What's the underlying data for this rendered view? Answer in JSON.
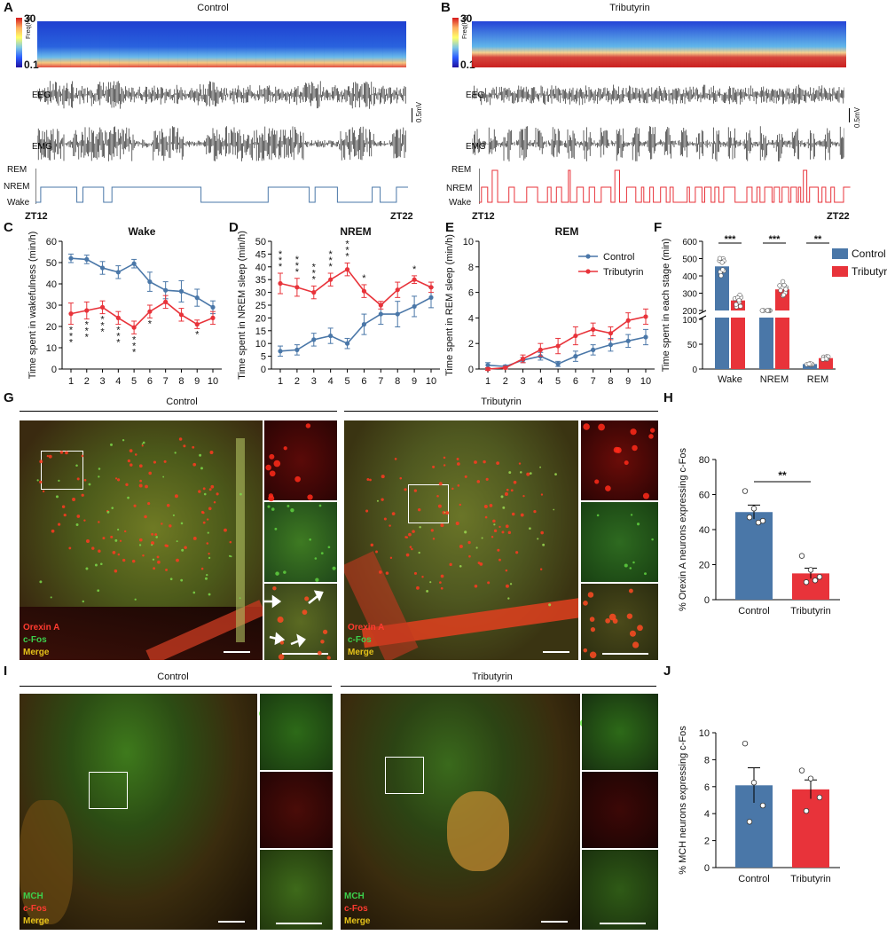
{
  "panels": {
    "A": "A",
    "B": "B",
    "C": "C",
    "D": "D",
    "E": "E",
    "F": "F",
    "G": "G",
    "H": "H",
    "I": "I",
    "J": "J"
  },
  "top": {
    "control_title": "Control",
    "tributyrin_title": "Tributyrin",
    "cbar_max": "30",
    "cbar_min": "0.1",
    "cbar_unit": "Freq(Hz)",
    "eeg": "EEG",
    "emg": "EMG",
    "rem": "REM",
    "nrem": "NREM",
    "wake": "Wake",
    "zt_start": "ZT12",
    "zt_end": "ZT22",
    "scale": "0.5mV"
  },
  "colors": {
    "control": "#4a77a8",
    "tributyrin": "#e8333a"
  },
  "chart_data": [
    {
      "id": "C",
      "type": "line",
      "title": "Wake",
      "ylabel": "Time spent in wakefulness (min/h)",
      "ylim": [
        0,
        60
      ],
      "yticks": [
        "0",
        "10",
        "20",
        "30",
        "40",
        "50",
        "60"
      ],
      "x": [
        1,
        2,
        3,
        4,
        5,
        6,
        7,
        8,
        9,
        10
      ],
      "series": [
        {
          "name": "Control",
          "values": [
            52,
            51.5,
            47.5,
            45.5,
            49.5,
            41,
            37,
            36.5,
            33.5,
            29
          ],
          "err": [
            2,
            2,
            3,
            3,
            2,
            4.5,
            4,
            5,
            4,
            3
          ]
        },
        {
          "name": "Tributyrin",
          "values": [
            26,
            27.5,
            29,
            24,
            19.5,
            27,
            31.5,
            25.5,
            21,
            24
          ],
          "err": [
            5,
            4,
            3,
            3,
            3,
            3,
            3,
            3,
            2,
            3
          ]
        }
      ],
      "sig": [
        {
          "x": 1,
          "t": "***"
        },
        {
          "x": 2,
          "t": "***"
        },
        {
          "x": 3,
          "t": "***"
        },
        {
          "x": 4,
          "t": "***"
        },
        {
          "x": 5,
          "t": "***"
        },
        {
          "x": 6,
          "t": "*"
        },
        {
          "x": 9,
          "t": "*"
        }
      ]
    },
    {
      "id": "D",
      "type": "line",
      "title": "NREM",
      "ylabel": "Time spent in NREM sleep (min/h)",
      "ylim": [
        0,
        50
      ],
      "yticks": [
        "0",
        "5",
        "10",
        "15",
        "20",
        "25",
        "30",
        "35",
        "40",
        "45",
        "50"
      ],
      "x": [
        1,
        2,
        3,
        4,
        5,
        6,
        7,
        8,
        9,
        10
      ],
      "series": [
        {
          "name": "Control",
          "values": [
            7,
            7.5,
            11.5,
            13,
            10,
            17.5,
            21.5,
            21.5,
            24.5,
            28
          ],
          "err": [
            2,
            2,
            2.5,
            3,
            2,
            4,
            4,
            5,
            4,
            4
          ]
        },
        {
          "name": "Tributyrin",
          "values": [
            33.5,
            32,
            30,
            35,
            39,
            30.5,
            25,
            31,
            35,
            32
          ],
          "err": [
            4,
            3.5,
            2.5,
            2.5,
            2.5,
            2.5,
            1.5,
            3,
            1.5,
            2
          ]
        }
      ],
      "sig": [
        {
          "x": 1,
          "t": "***"
        },
        {
          "x": 2,
          "t": "***"
        },
        {
          "x": 3,
          "t": "***"
        },
        {
          "x": 4,
          "t": "***"
        },
        {
          "x": 5,
          "t": "***"
        },
        {
          "x": 6,
          "t": "*"
        },
        {
          "x": 9,
          "t": "*"
        }
      ]
    },
    {
      "id": "E",
      "type": "line",
      "title": "REM",
      "ylabel": "Time spent in REM sleep (min/h)",
      "ylim": [
        0,
        10
      ],
      "yticks": [
        "0",
        "2",
        "4",
        "6",
        "8",
        "10"
      ],
      "x": [
        1,
        2,
        3,
        4,
        5,
        6,
        7,
        8,
        9,
        10
      ],
      "series": [
        {
          "name": "Control",
          "values": [
            0.3,
            0.2,
            0.7,
            1.0,
            0.4,
            1.0,
            1.5,
            1.9,
            2.2,
            2.5
          ],
          "err": [
            0.2,
            0.1,
            0.2,
            0.3,
            0.2,
            0.4,
            0.4,
            0.5,
            0.5,
            0.6
          ]
        },
        {
          "name": "Tributyrin",
          "values": [
            0,
            0.1,
            0.8,
            1.5,
            1.8,
            2.6,
            3.1,
            2.8,
            3.8,
            4.1
          ],
          "err": [
            0.1,
            0.1,
            0.3,
            0.5,
            0.6,
            0.7,
            0.5,
            0.5,
            0.6,
            0.6
          ]
        }
      ],
      "legend": [
        "Control",
        "Tributyrin"
      ]
    },
    {
      "id": "F",
      "type": "bar",
      "ylabel": "Time spent in each stage (min)",
      "yticks": [
        "0",
        "50",
        "100",
        "200",
        "300",
        "400",
        "500",
        "600"
      ],
      "categories": [
        "Wake",
        "NREM",
        "REM"
      ],
      "series": [
        {
          "name": "Control",
          "values": [
            455,
            140,
            10
          ]
        },
        {
          "name": "Tributyrin",
          "values": [
            258,
            322,
            22
          ]
        }
      ],
      "sig": [
        "***",
        "***",
        "**"
      ],
      "legend": [
        "Control",
        "Tributyrin"
      ]
    },
    {
      "id": "H",
      "type": "bar",
      "ylabel": "% Orexin A neurons expressing c-Fos",
      "ylim": [
        0,
        80
      ],
      "yticks": [
        "0",
        "20",
        "40",
        "60",
        "80"
      ],
      "categories": [
        "Control",
        "Tributyrin"
      ],
      "values": [
        50,
        15
      ],
      "err": [
        4,
        3
      ],
      "points": [
        [
          62,
          52,
          45,
          47,
          44
        ],
        [
          25,
          17,
          13,
          10,
          11
        ]
      ],
      "sig": "**"
    },
    {
      "id": "J",
      "type": "bar",
      "ylabel": "% MCH neurons expressing c-Fos",
      "ylim": [
        0,
        10
      ],
      "yticks": [
        "0",
        "2",
        "4",
        "6",
        "8",
        "10"
      ],
      "categories": [
        "Control",
        "Tributyrin"
      ],
      "values": [
        6.1,
        5.8
      ],
      "err": [
        1.3,
        0.7
      ],
      "points": [
        [
          9.2,
          6.3,
          4.6,
          3.4
        ],
        [
          7.2,
          6.6,
          5.2,
          4.2
        ]
      ]
    }
  ],
  "micro": {
    "G_control": "Control",
    "G_tributyrin": "Tributyrin",
    "I_control": "Control",
    "I_tributyrin": "Tributyrin",
    "orexin": "Orexin A",
    "cfos_g": "c-Fos",
    "merge": "Merge",
    "mch": "MCH",
    "cfos_i": "c-Fos"
  }
}
